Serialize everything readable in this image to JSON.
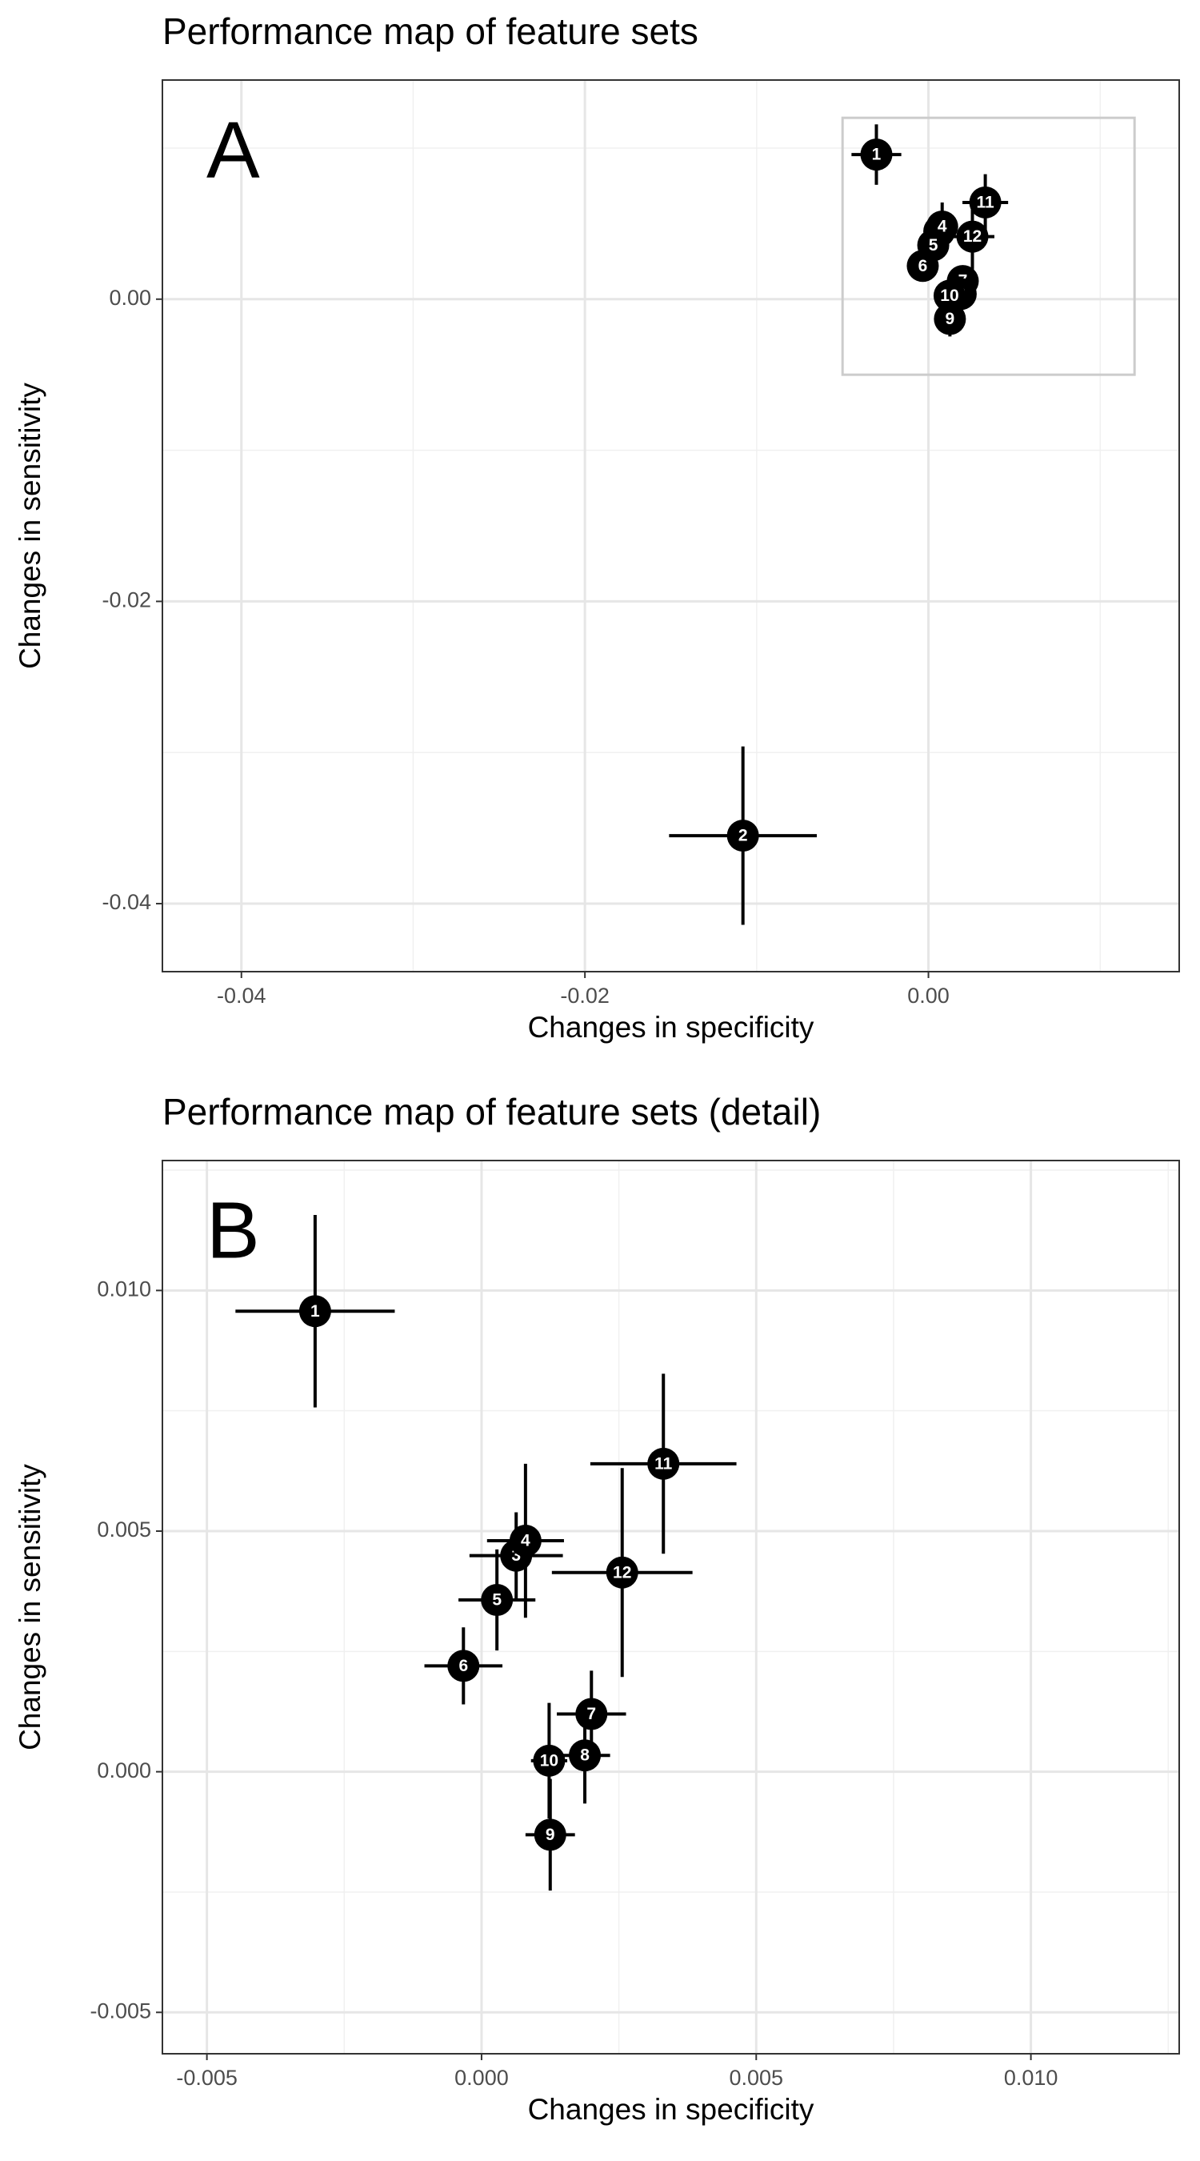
{
  "chart_data": [
    {
      "type": "scatter",
      "title": "Performance map of feature sets",
      "panel_label": "A",
      "x_label": "Changes in specificity",
      "y_label": "Changes in sensitivity",
      "xlim": [
        -0.0446,
        0.0146
      ],
      "ylim": [
        -0.0445,
        0.0145
      ],
      "xticks": [
        -0.04,
        -0.02,
        {
          "value": 0,
          "label": "0.00"
        }
      ],
      "yticks": [
        -0.04,
        -0.02,
        {
          "value": 0,
          "label": "0.00"
        }
      ],
      "minor_xticks": [
        -0.03,
        -0.01,
        0.01
      ],
      "minor_yticks": [
        -0.03,
        -0.01,
        0.01
      ],
      "grid": true,
      "color": "#000000",
      "zoom_box": {
        "xlim": [
          -0.005,
          0.012
        ],
        "ylim": [
          -0.005,
          0.012
        ]
      },
      "labels": [
        "1",
        "2",
        "3",
        "4",
        "5",
        "6",
        "7",
        "8",
        "9",
        "10",
        "11",
        "12"
      ],
      "x": [
        -0.00303,
        -0.0108,
        0.00063,
        0.0008,
        0.00028,
        -0.00033,
        0.002,
        0.00188,
        0.00125,
        0.00123,
        0.00331,
        0.00256
      ],
      "y": [
        0.00957,
        -0.0355,
        0.00449,
        0.0048,
        0.00357,
        0.0022,
        0.0012,
        0.00034,
        -0.00131,
        0.00023,
        0.0064,
        0.00414
      ],
      "xerr": [
        0.00145,
        0.0043,
        0.00085,
        0.0007,
        0.0007,
        0.00071,
        0.00063,
        0.00046,
        0.00045,
        0.00033,
        0.00133,
        0.00128
      ],
      "yerr": [
        0.002,
        0.0059,
        0.0009,
        0.0016,
        0.00105,
        0.0008,
        0.0009,
        0.001,
        0.00116,
        0.0012,
        0.00187,
        0.00217
      ]
    },
    {
      "type": "scatter",
      "title": "Performance map of feature sets (detail)",
      "panel_label": "B",
      "x_label": "Changes in specificity",
      "y_label": "Changes in sensitivity",
      "xlim": [
        -0.00581,
        0.0127
      ],
      "ylim": [
        -0.00586,
        0.0127
      ],
      "xticks": [
        -0.005,
        {
          "value": 0,
          "label": "0.000"
        },
        0.005,
        {
          "value": 0.01,
          "label": "0.010"
        }
      ],
      "yticks": [
        -0.005,
        {
          "value": 0,
          "label": "0.000"
        },
        0.005,
        {
          "value": 0.01,
          "label": "0.010"
        }
      ],
      "minor_xticks": [
        -0.0025,
        0.0025,
        0.0075,
        0.0125
      ],
      "minor_yticks": [
        -0.0025,
        0.0025,
        0.0075,
        0.0125
      ],
      "grid": true,
      "color": "#000000",
      "labels": [
        "1",
        "3",
        "4",
        "5",
        "6",
        "7",
        "8",
        "9",
        "10",
        "11",
        "12"
      ],
      "x": [
        -0.00303,
        0.00063,
        0.0008,
        0.00028,
        -0.00033,
        0.002,
        0.00188,
        0.00125,
        0.00123,
        0.00331,
        0.00256
      ],
      "y": [
        0.00957,
        0.00449,
        0.0048,
        0.00357,
        0.0022,
        0.0012,
        0.00034,
        -0.00131,
        0.00023,
        0.0064,
        0.00414
      ],
      "xerr": [
        0.00145,
        0.00085,
        0.0007,
        0.0007,
        0.00071,
        0.00063,
        0.00046,
        0.00045,
        0.00033,
        0.00133,
        0.00128
      ],
      "yerr": [
        0.002,
        0.0009,
        0.0016,
        0.00105,
        0.0008,
        0.0009,
        0.001,
        0.00116,
        0.0012,
        0.00187,
        0.00217
      ]
    }
  ]
}
